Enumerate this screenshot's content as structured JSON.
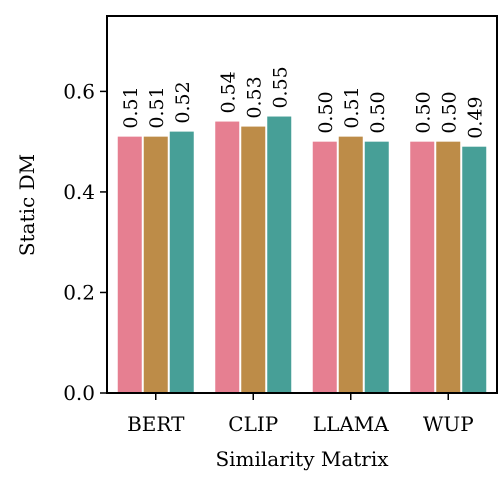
{
  "chart_data": {
    "type": "bar",
    "xlabel": "Similarity Matrix",
    "ylabel": "Static DM",
    "categories": [
      "BERT",
      "CLIP",
      "LLAMA",
      "WUP"
    ],
    "series": [
      {
        "values": [
          0.51,
          0.54,
          0.5,
          0.5
        ],
        "labels": [
          "0.51",
          "0.54",
          "0.50",
          "0.50"
        ],
        "color": "#e67f91"
      },
      {
        "values": [
          0.51,
          0.53,
          0.51,
          0.5
        ],
        "labels": [
          "0.51",
          "0.53",
          "0.51",
          "0.50"
        ],
        "color": "#bd8c48"
      },
      {
        "values": [
          0.52,
          0.55,
          0.5,
          0.49
        ],
        "labels": [
          "0.52",
          "0.55",
          "0.50",
          "0.49"
        ],
        "color": "#479f97"
      }
    ],
    "ylim": [
      0,
      0.75
    ],
    "yticks": [
      0.0,
      0.2,
      0.4,
      0.6
    ],
    "ytick_labels": [
      "0.0",
      "0.2",
      "0.4",
      "0.6"
    ],
    "grid": false,
    "legend": "none"
  }
}
